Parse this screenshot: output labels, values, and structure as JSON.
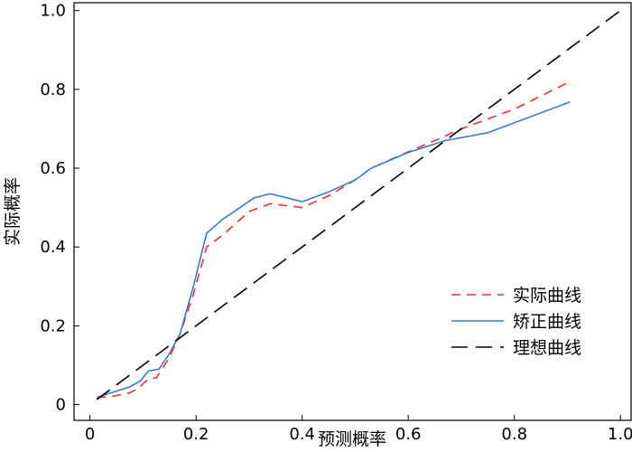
{
  "chart_data": {
    "type": "line",
    "title": "",
    "xlabel": "预测概率",
    "ylabel": "实际概率",
    "xlim": [
      -0.03,
      1.02
    ],
    "ylim": [
      -0.04,
      1.02
    ],
    "x_ticks": [
      0,
      0.2,
      0.4,
      0.6,
      0.8,
      1.0
    ],
    "x_tick_labels": [
      "0",
      "0.2",
      "0.4",
      "0.6",
      "0.8",
      "1.0"
    ],
    "y_ticks": [
      0,
      0.2,
      0.4,
      0.6,
      0.8,
      1.0
    ],
    "y_tick_labels": [
      "0",
      "0.2",
      "0.4",
      "0.6",
      "0.8",
      "1.0"
    ],
    "grid": false,
    "legend_position": "bottom-right",
    "series": [
      {
        "name": "实际曲线",
        "color": "#e8312b",
        "dash": "dashed",
        "x": [
          0.013,
          0.04,
          0.075,
          0.09,
          0.11,
          0.125,
          0.15,
          0.17,
          0.195,
          0.22,
          0.25,
          0.3,
          0.34,
          0.37,
          0.4,
          0.45,
          0.5,
          0.53,
          0.58,
          0.65,
          0.7,
          0.8,
          0.905
        ],
        "y": [
          0.018,
          0.02,
          0.03,
          0.04,
          0.065,
          0.068,
          0.12,
          0.18,
          0.28,
          0.4,
          0.43,
          0.49,
          0.51,
          0.505,
          0.5,
          0.53,
          0.57,
          0.6,
          0.63,
          0.67,
          0.7,
          0.75,
          0.82
        ]
      },
      {
        "name": "矫正曲线",
        "color": "#3a7cc0",
        "dash": "solid",
        "x": [
          0.013,
          0.04,
          0.075,
          0.095,
          0.11,
          0.13,
          0.15,
          0.17,
          0.195,
          0.22,
          0.25,
          0.31,
          0.34,
          0.37,
          0.4,
          0.45,
          0.5,
          0.53,
          0.6,
          0.67,
          0.75,
          0.905
        ],
        "y": [
          0.018,
          0.03,
          0.045,
          0.06,
          0.085,
          0.09,
          0.13,
          0.18,
          0.3,
          0.435,
          0.47,
          0.525,
          0.535,
          0.525,
          0.515,
          0.54,
          0.57,
          0.6,
          0.64,
          0.67,
          0.69,
          0.768
        ]
      },
      {
        "name": "理想曲线",
        "color": "#000000",
        "dash": "longdash",
        "x": [
          0.013,
          1.0
        ],
        "y": [
          0.013,
          1.0
        ]
      }
    ]
  }
}
